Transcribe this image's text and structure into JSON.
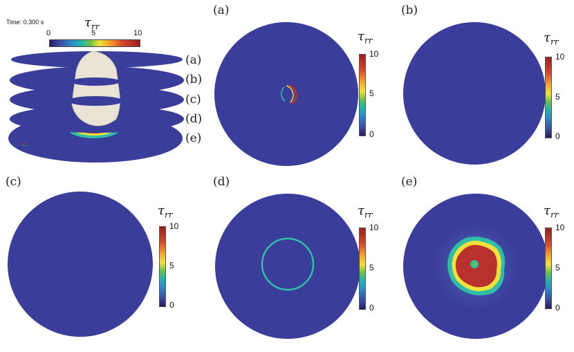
{
  "overview": {
    "time_text": "Time: 0.300 s",
    "colorbar_title": "τ",
    "colorbar_sub": "rr",
    "ticks": [
      "0",
      "5",
      "10"
    ],
    "slice_labels": [
      "(a)",
      "(b)",
      "(c)",
      "(d)",
      "(e)"
    ]
  },
  "panels": [
    {
      "label": "(a)",
      "title": "τ",
      "sub": "rr",
      "ticks": [
        "10",
        "5",
        "0"
      ]
    },
    {
      "label": "(b)",
      "title": "τ",
      "sub": "rr",
      "ticks": [
        "10",
        "5",
        "0"
      ]
    },
    {
      "label": "(c)",
      "title": "τ",
      "sub": "rr",
      "ticks": [
        "10",
        "5",
        "0"
      ]
    },
    {
      "label": "(d)",
      "title": "τ",
      "sub": "rr",
      "ticks": [
        "10",
        "5",
        "0"
      ]
    },
    {
      "label": "(e)",
      "title": "τ",
      "sub": "rr",
      "ticks": [
        "10",
        "5",
        "0"
      ]
    }
  ],
  "colors": {
    "disc": "#3a3d9a",
    "disc_dark": "#2e3080",
    "hot": "#b8312c",
    "mid": "#f0e13c",
    "cool": "#2fbfa6"
  }
}
